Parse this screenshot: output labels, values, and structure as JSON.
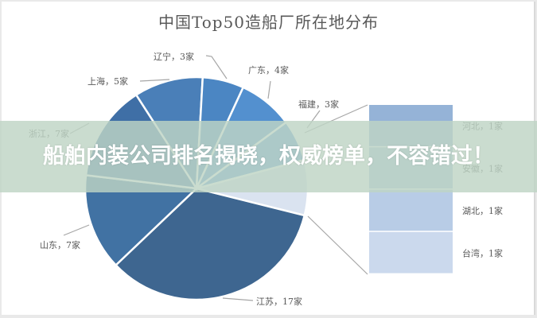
{
  "chart_data": {
    "type": "pie",
    "subtype": "bar-of-pie",
    "title": "中国Top50造船厂所在地分布",
    "unit": "家",
    "total": 50,
    "categories": [
      "江苏",
      "山东",
      "浙江",
      "上海",
      "辽宁",
      "广东",
      "福建",
      "其他"
    ],
    "values": [
      17,
      7,
      7,
      5,
      3,
      4,
      3,
      4
    ],
    "labels": [
      "江苏，17家",
      "山东，7家",
      "浙江，7家",
      "上海，5家",
      "辽宁，3家",
      "广东，4家",
      "福建，3家"
    ],
    "colors": [
      "#3e6690",
      "#4172a3",
      "#3f6fa6",
      "#4a7fb8",
      "#4b86c3",
      "#5390cf",
      "#5a98d6",
      "#dae3f0"
    ],
    "secondary_bar": {
      "categories": [
        "河北",
        "安徽",
        "湖北",
        "台湾"
      ],
      "values": [
        1,
        1,
        1,
        1
      ],
      "labels": [
        "河北，1家",
        "安徽，1家",
        "湖北，1家",
        "台湾，1家"
      ],
      "colors": [
        "#95b3d7",
        "#a6bfdf",
        "#b8cce6",
        "#cbd9ed"
      ]
    }
  },
  "overlay": {
    "headline": "船舶内装公司排名揭晓，权威榜单，不容错过！"
  }
}
